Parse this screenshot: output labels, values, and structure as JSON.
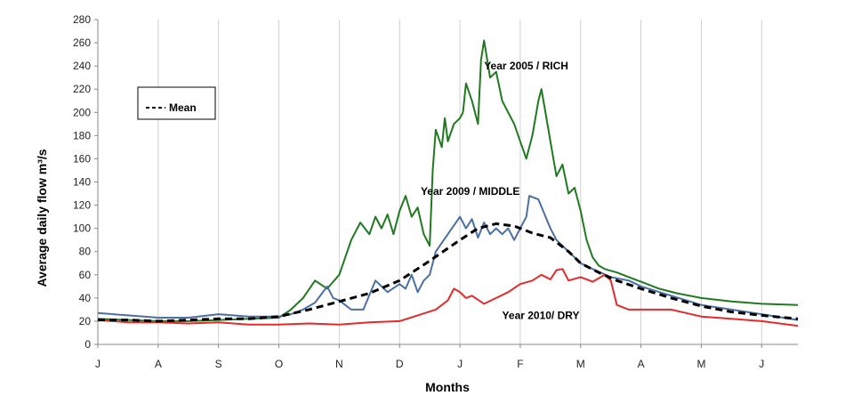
{
  "chart_data": {
    "type": "line",
    "title": "",
    "xlabel": "Months",
    "ylabel": "Average daily flow  m³/s",
    "ylim": [
      0,
      280
    ],
    "yticks": [
      0,
      20,
      40,
      60,
      80,
      100,
      120,
      140,
      160,
      180,
      200,
      220,
      240,
      260,
      280
    ],
    "x_categories": [
      "J",
      "A",
      "S",
      "O",
      "N",
      "D",
      "J",
      "F",
      "M",
      "A",
      "M",
      "J"
    ],
    "xlim": [
      0,
      11.6
    ],
    "grid": "vertical only",
    "legend": {
      "placement": "top-left",
      "entries": [
        "- - - Mean"
      ]
    },
    "series": [
      {
        "name": "Year 2005 / RICH",
        "color": "#1f7a1f",
        "style": "solid",
        "points": [
          [
            0,
            22
          ],
          [
            0.5,
            21
          ],
          [
            1,
            20
          ],
          [
            1.5,
            20
          ],
          [
            2,
            21
          ],
          [
            2.5,
            22
          ],
          [
            3,
            23
          ],
          [
            3.2,
            30
          ],
          [
            3.4,
            40
          ],
          [
            3.6,
            55
          ],
          [
            3.8,
            48
          ],
          [
            4,
            60
          ],
          [
            4.2,
            90
          ],
          [
            4.35,
            105
          ],
          [
            4.5,
            95
          ],
          [
            4.6,
            110
          ],
          [
            4.7,
            100
          ],
          [
            4.8,
            112
          ],
          [
            4.9,
            95
          ],
          [
            5,
            115
          ],
          [
            5.1,
            128
          ],
          [
            5.2,
            110
          ],
          [
            5.3,
            118
          ],
          [
            5.4,
            95
          ],
          [
            5.5,
            85
          ],
          [
            5.55,
            150
          ],
          [
            5.6,
            185
          ],
          [
            5.7,
            170
          ],
          [
            5.75,
            195
          ],
          [
            5.8,
            175
          ],
          [
            5.9,
            190
          ],
          [
            6,
            195
          ],
          [
            6.05,
            200
          ],
          [
            6.1,
            225
          ],
          [
            6.2,
            210
          ],
          [
            6.3,
            190
          ],
          [
            6.35,
            245
          ],
          [
            6.4,
            262
          ],
          [
            6.5,
            230
          ],
          [
            6.6,
            235
          ],
          [
            6.7,
            210
          ],
          [
            6.8,
            200
          ],
          [
            6.9,
            190
          ],
          [
            7,
            175
          ],
          [
            7.1,
            160
          ],
          [
            7.2,
            180
          ],
          [
            7.3,
            210
          ],
          [
            7.35,
            220
          ],
          [
            7.4,
            205
          ],
          [
            7.5,
            175
          ],
          [
            7.6,
            145
          ],
          [
            7.7,
            155
          ],
          [
            7.8,
            130
          ],
          [
            7.9,
            135
          ],
          [
            8,
            115
          ],
          [
            8.1,
            90
          ],
          [
            8.2,
            75
          ],
          [
            8.3,
            68
          ],
          [
            8.4,
            65
          ],
          [
            8.6,
            62
          ],
          [
            8.8,
            58
          ],
          [
            9,
            54
          ],
          [
            9.3,
            48
          ],
          [
            9.6,
            44
          ],
          [
            10,
            40
          ],
          [
            10.5,
            37
          ],
          [
            11,
            35
          ],
          [
            11.6,
            34
          ]
        ]
      },
      {
        "name": "Year 2009 / MIDDLE",
        "color": "#4a6fa5",
        "style": "solid",
        "points": [
          [
            0,
            27
          ],
          [
            0.5,
            25
          ],
          [
            1,
            23
          ],
          [
            1.5,
            23
          ],
          [
            2,
            26
          ],
          [
            2.5,
            24
          ],
          [
            3,
            24
          ],
          [
            3.2,
            26
          ],
          [
            3.4,
            30
          ],
          [
            3.6,
            36
          ],
          [
            3.8,
            50
          ],
          [
            3.9,
            40
          ],
          [
            4,
            38
          ],
          [
            4.2,
            30
          ],
          [
            4.4,
            30
          ],
          [
            4.6,
            55
          ],
          [
            4.8,
            45
          ],
          [
            5,
            52
          ],
          [
            5.1,
            48
          ],
          [
            5.2,
            60
          ],
          [
            5.3,
            45
          ],
          [
            5.4,
            55
          ],
          [
            5.5,
            60
          ],
          [
            5.6,
            80
          ],
          [
            5.8,
            95
          ],
          [
            6,
            110
          ],
          [
            6.1,
            100
          ],
          [
            6.2,
            108
          ],
          [
            6.3,
            92
          ],
          [
            6.4,
            105
          ],
          [
            6.5,
            95
          ],
          [
            6.6,
            100
          ],
          [
            6.7,
            95
          ],
          [
            6.8,
            100
          ],
          [
            6.9,
            90
          ],
          [
            7,
            100
          ],
          [
            7.1,
            110
          ],
          [
            7.15,
            128
          ],
          [
            7.3,
            125
          ],
          [
            7.5,
            100
          ],
          [
            7.6,
            90
          ],
          [
            7.8,
            80
          ],
          [
            8,
            70
          ],
          [
            8.2,
            65
          ],
          [
            8.5,
            58
          ],
          [
            8.8,
            55
          ],
          [
            9,
            50
          ],
          [
            9.5,
            42
          ],
          [
            10,
            34
          ],
          [
            10.5,
            30
          ],
          [
            11,
            26
          ],
          [
            11.6,
            21
          ]
        ]
      },
      {
        "name": "Year 2010/ DRY",
        "color": "#e52a2a",
        "style": "solid",
        "points": [
          [
            0,
            21
          ],
          [
            0.5,
            19
          ],
          [
            1,
            19
          ],
          [
            1.5,
            18
          ],
          [
            2,
            19
          ],
          [
            2.5,
            17
          ],
          [
            3,
            17
          ],
          [
            3.5,
            18
          ],
          [
            4,
            17
          ],
          [
            4.5,
            19
          ],
          [
            5,
            20
          ],
          [
            5.3,
            25
          ],
          [
            5.6,
            30
          ],
          [
            5.8,
            38
          ],
          [
            5.9,
            48
          ],
          [
            6,
            45
          ],
          [
            6.1,
            40
          ],
          [
            6.2,
            42
          ],
          [
            6.4,
            35
          ],
          [
            6.6,
            40
          ],
          [
            6.8,
            45
          ],
          [
            7,
            52
          ],
          [
            7.2,
            55
          ],
          [
            7.35,
            60
          ],
          [
            7.5,
            56
          ],
          [
            7.6,
            64
          ],
          [
            7.7,
            65
          ],
          [
            7.8,
            55
          ],
          [
            8,
            58
          ],
          [
            8.2,
            54
          ],
          [
            8.4,
            60
          ],
          [
            8.5,
            55
          ],
          [
            8.6,
            34
          ],
          [
            8.8,
            30
          ],
          [
            9,
            30
          ],
          [
            9.5,
            30
          ],
          [
            10,
            24
          ],
          [
            10.5,
            22
          ],
          [
            11,
            20
          ],
          [
            11.6,
            16
          ]
        ]
      },
      {
        "name": "Mean",
        "color": "#000000",
        "style": "dashed",
        "points": [
          [
            0,
            21
          ],
          [
            0.5,
            21
          ],
          [
            1,
            20
          ],
          [
            1.5,
            21
          ],
          [
            2,
            22
          ],
          [
            2.5,
            22
          ],
          [
            3,
            24
          ],
          [
            3.5,
            30
          ],
          [
            4,
            37
          ],
          [
            4.5,
            44
          ],
          [
            5,
            55
          ],
          [
            5.5,
            72
          ],
          [
            6,
            90
          ],
          [
            6.3,
            100
          ],
          [
            6.6,
            104
          ],
          [
            6.9,
            102
          ],
          [
            7.2,
            96
          ],
          [
            7.5,
            92
          ],
          [
            7.8,
            80
          ],
          [
            8,
            70
          ],
          [
            8.3,
            62
          ],
          [
            8.6,
            55
          ],
          [
            9,
            48
          ],
          [
            9.5,
            40
          ],
          [
            10,
            33
          ],
          [
            10.5,
            28
          ],
          [
            11,
            25
          ],
          [
            11.6,
            22
          ]
        ]
      }
    ],
    "annotations": [
      {
        "id": "rich",
        "text": "Year 2005 / RICH",
        "x": 6.4,
        "y": 237
      },
      {
        "id": "middle",
        "text": "Year 2009 / MIDDLE",
        "x": 5.35,
        "y": 129
      },
      {
        "id": "dry",
        "text": "Year 2010/ DRY",
        "x": 6.7,
        "y": 22
      }
    ]
  }
}
